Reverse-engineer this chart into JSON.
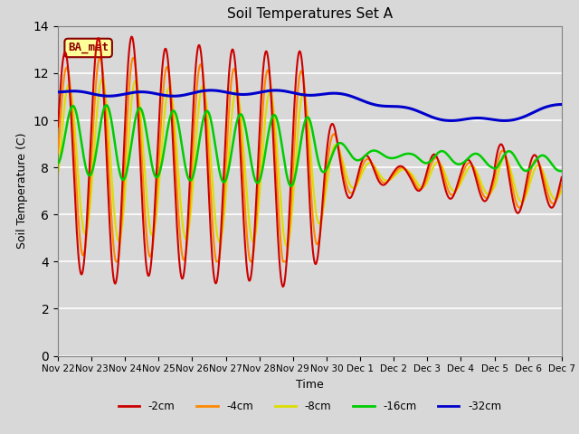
{
  "title": "Soil Temperatures Set A",
  "xlabel": "Time",
  "ylabel": "Soil Temperature (C)",
  "ylim": [
    0,
    14
  ],
  "yticks": [
    0,
    2,
    4,
    6,
    8,
    10,
    12,
    14
  ],
  "background_color": "#d8d8d8",
  "plot_bg_color": "#d8d8d8",
  "grid_color": "white",
  "annotation_text": "BA_met",
  "annotation_bg": "#ffff99",
  "annotation_border": "#8B0000",
  "series_colors": {
    "-2cm": "#cc0000",
    "-4cm": "#ff8800",
    "-8cm": "#dddd00",
    "-16cm": "#00cc00",
    "-32cm": "#0000cc"
  },
  "legend_labels": [
    "-2cm",
    "-4cm",
    "-8cm",
    "-16cm",
    "-32cm"
  ],
  "x_tick_labels": [
    "Nov 22",
    "Nov 23",
    "Nov 24",
    "Nov 25",
    "Nov 26",
    "Nov 27",
    "Nov 28",
    "Nov 29",
    "Nov 30",
    "Dec 1",
    "Dec 2",
    "Dec 3",
    "Dec 4",
    "Dec 5",
    "Dec 6",
    "Dec 7"
  ],
  "num_points": 720
}
